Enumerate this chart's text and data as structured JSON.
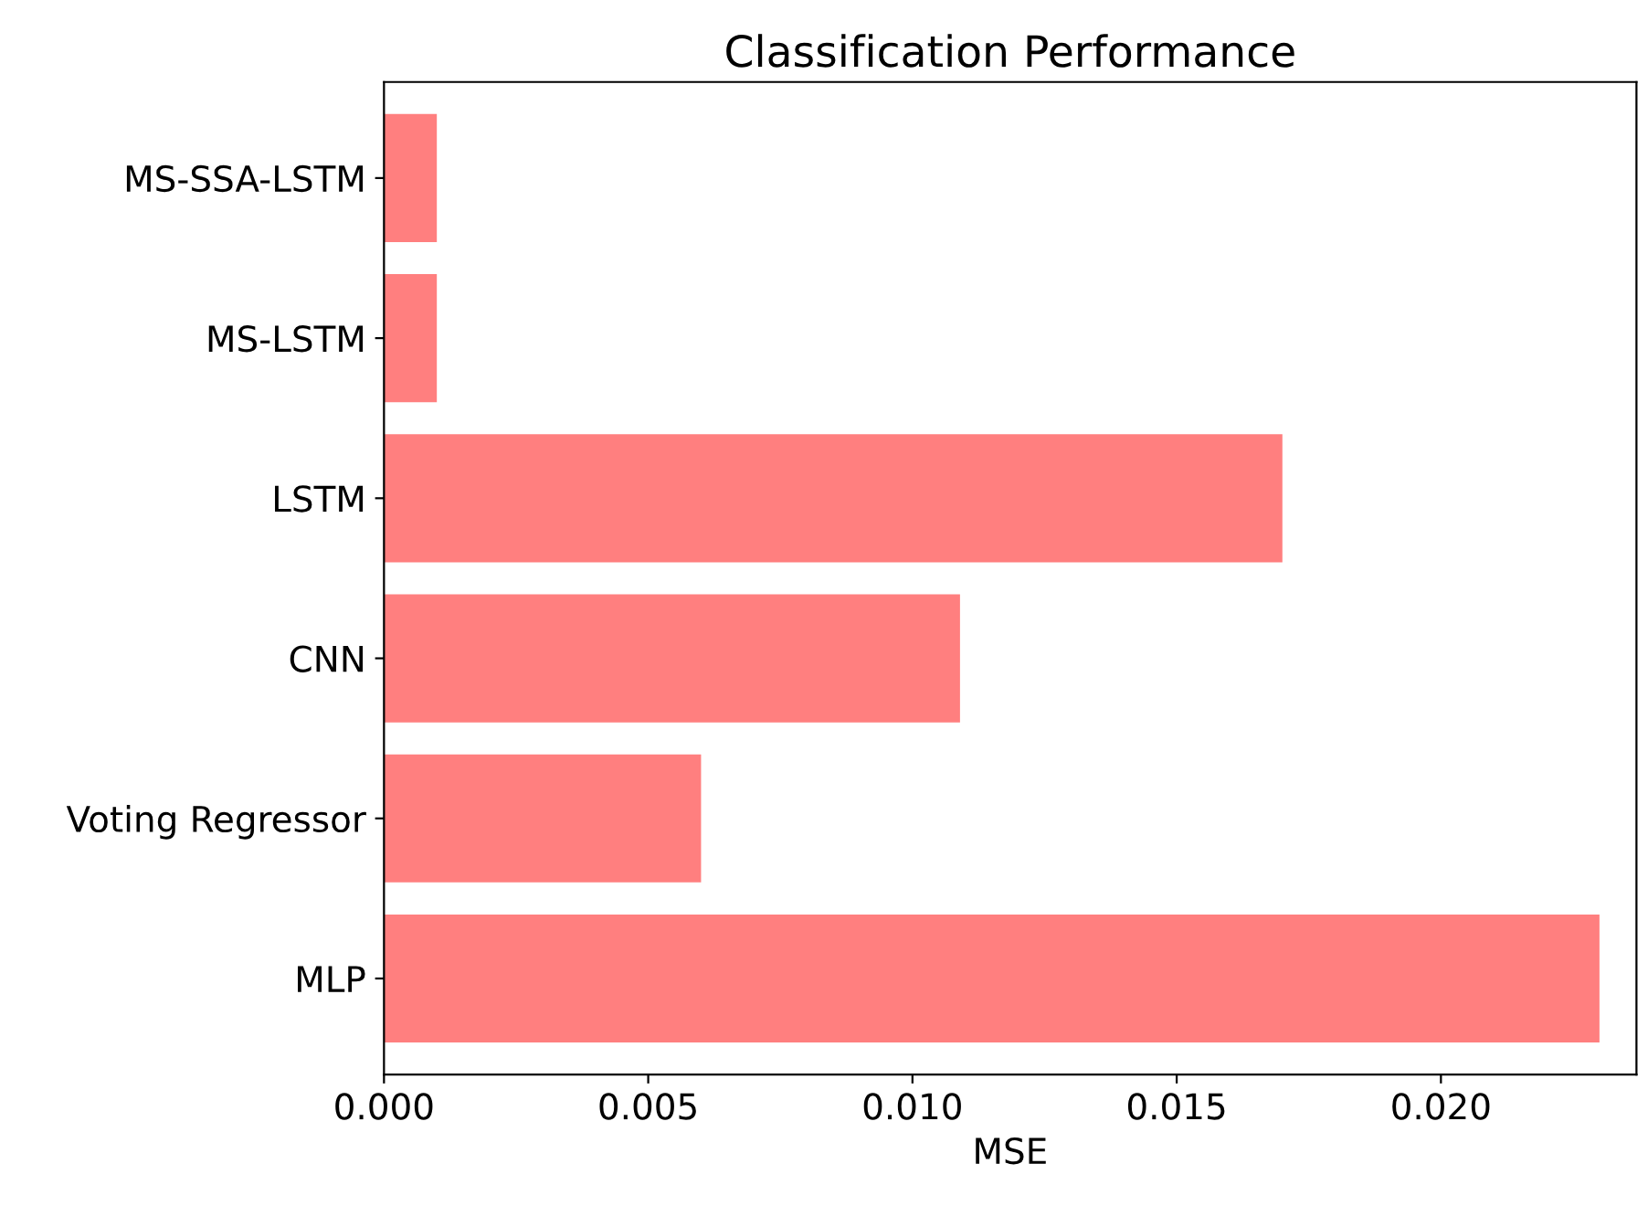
{
  "chart_data": {
    "type": "bar",
    "orientation": "horizontal",
    "title": "Classification Performance",
    "xlabel": "MSE",
    "categories": [
      "MS-SSA-LSTM",
      "MS-LSTM",
      "LSTM",
      "CNN",
      "Voting Regressor",
      "MLP"
    ],
    "values": [
      0.001,
      0.001,
      0.017,
      0.0109,
      0.006,
      0.023
    ],
    "color": "#ff7f7f",
    "xlim": [
      0,
      0.0237
    ],
    "xticks": [
      {
        "value": 0,
        "label": "0.000"
      },
      0.005,
      {
        "value": 0.01,
        "label": "0.010"
      },
      0.015,
      {
        "value": 0.02,
        "label": "0.020"
      }
    ],
    "grid": false
  }
}
